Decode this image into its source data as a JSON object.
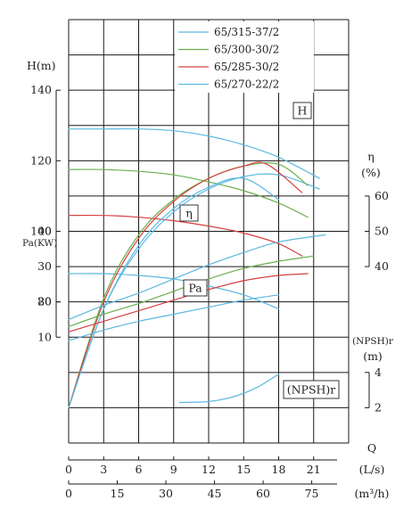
{
  "chart_data": {
    "type": "line",
    "legend": {
      "placement": "top-right",
      "entries": [
        {
          "name": "65/315-37/2",
          "color": "#5bb8e0"
        },
        {
          "name": "65/300-30/2",
          "color": "#6ab04c"
        },
        {
          "name": "65/285-30/2",
          "color": "#d64040"
        },
        {
          "name": "65/270-22/2",
          "color": "#5bb8e0"
        }
      ]
    },
    "axes": {
      "head": {
        "label": "H(m)",
        "ticks": [
          "80",
          "100",
          "120",
          "140"
        ],
        "range": [
          80,
          140
        ]
      },
      "power": {
        "label": "Pa(KW)",
        "ticks": [
          "10",
          "20",
          "30",
          "40"
        ],
        "range": [
          0,
          40
        ]
      },
      "efficiency": {
        "label": "η",
        "unit": "(%)",
        "ticks": [
          "40",
          "50",
          "60"
        ],
        "range": [
          40,
          60
        ]
      },
      "npsh": {
        "label": "(NPSH)r",
        "unit": "(m)",
        "ticks": [
          "2",
          "4"
        ],
        "range": [
          2,
          4
        ]
      },
      "flow_ls": {
        "label": "Q",
        "unit": "(L/s)",
        "ticks": [
          "0",
          "3",
          "6",
          "9",
          "12",
          "15",
          "18",
          "21"
        ]
      },
      "flow_m3h": {
        "unit": "(m³/h)",
        "ticks": [
          "0",
          "15",
          "30",
          "45",
          "60",
          "75"
        ]
      }
    },
    "grid": true,
    "curve_labels": {
      "head": "H",
      "efficiency": "η",
      "power": "Pa",
      "npsh": "(NPSH)r"
    },
    "head_curves": [
      {
        "name": "65/315-37/2",
        "x": [
          0,
          3,
          6,
          9,
          12,
          15,
          18,
          21.5
        ],
        "y": [
          129,
          129,
          129,
          128.5,
          127,
          124.5,
          121,
          115
        ]
      },
      {
        "name": "65/300-30/2",
        "x": [
          0,
          3,
          6,
          9,
          12,
          15,
          18,
          20.5
        ],
        "y": [
          117.5,
          117.5,
          117,
          116,
          114,
          111.5,
          108,
          104
        ]
      },
      {
        "name": "65/285-30/2",
        "x": [
          0,
          3,
          6,
          9,
          12,
          15,
          18,
          20
        ],
        "y": [
          104.5,
          104.5,
          104,
          103,
          101.5,
          99.5,
          96.5,
          93
        ]
      },
      {
        "name": "65/270-22/2",
        "x": [
          0,
          3,
          6,
          9,
          12,
          15,
          18
        ],
        "y": [
          88,
          88,
          87.5,
          86.5,
          84.5,
          82,
          78
        ]
      }
    ],
    "efficiency_curves": [
      {
        "name": "65/315-37/2",
        "x": [
          0,
          3,
          6,
          9,
          12,
          15,
          18,
          21.5
        ],
        "y": [
          0,
          28,
          45,
          55.5,
          62,
          65.5,
          66,
          62
        ]
      },
      {
        "name": "65/300-30/2",
        "x": [
          0,
          3,
          6,
          9,
          12,
          15,
          18,
          20.5
        ],
        "y": [
          0,
          31,
          49,
          59,
          65,
          68.5,
          69,
          63
        ]
      },
      {
        "name": "65/285-30/2",
        "x": [
          0,
          3,
          6,
          9,
          12,
          15,
          17,
          20
        ],
        "y": [
          0,
          30,
          48,
          58.5,
          65,
          68.5,
          69,
          61
        ]
      },
      {
        "name": "65/270-22/2",
        "x": [
          0,
          3,
          6,
          9,
          12,
          15,
          18
        ],
        "y": [
          0,
          28,
          46,
          56.5,
          62.5,
          65,
          59
        ]
      }
    ],
    "power_curves": [
      {
        "name": "65/315-37/2",
        "x": [
          0,
          3,
          6,
          9,
          12,
          15,
          18,
          22
        ],
        "y": [
          15,
          19,
          22.5,
          26.5,
          30.5,
          34,
          37,
          39
        ]
      },
      {
        "name": "65/300-30/2",
        "x": [
          0,
          3,
          6,
          9,
          12,
          15,
          18,
          21
        ],
        "y": [
          13,
          16.5,
          19.5,
          23,
          26.5,
          29.5,
          31.5,
          33
        ]
      },
      {
        "name": "65/285-30/2",
        "x": [
          0,
          3,
          6,
          9,
          12,
          15,
          18,
          20.5
        ],
        "y": [
          11.5,
          14.5,
          17.5,
          20.5,
          23.5,
          26,
          27.5,
          28
        ]
      },
      {
        "name": "65/270-22/2",
        "x": [
          0,
          3,
          6,
          9,
          12,
          15,
          18
        ],
        "y": [
          9,
          12,
          14.5,
          16.5,
          18.5,
          20.5,
          22
        ]
      }
    ],
    "npsh_curve": {
      "x": [
        9.5,
        12,
        14,
        16,
        18
      ],
      "y": [
        2.3,
        2.35,
        2.6,
        3.1,
        3.9
      ]
    }
  }
}
